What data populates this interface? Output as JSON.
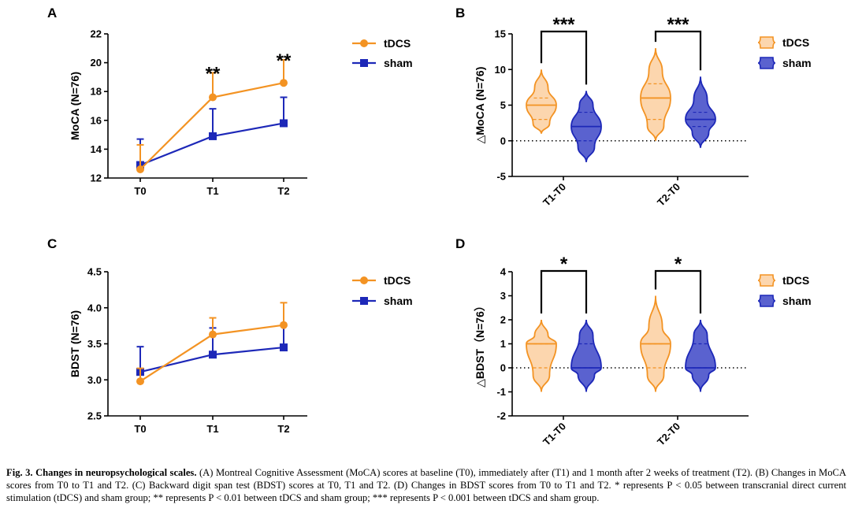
{
  "colors": {
    "tdcs": "#f39323",
    "sham": "#1d28b8",
    "tdcs_fill": "#fcd6ae",
    "sham_fill": "#5a62cf"
  },
  "chart_data": [
    {
      "panel": "A",
      "type": "line",
      "title": "",
      "xlabel": "",
      "ylabel": "MoCA (N=76)",
      "categories": [
        "T0",
        "T1",
        "T2"
      ],
      "ylim": [
        12,
        22
      ],
      "yticks": [
        "12",
        "14",
        "16",
        "18",
        "20",
        "22"
      ],
      "series": [
        {
          "name": "tDCS",
          "values": [
            12.6,
            17.6,
            18.6
          ],
          "err": [
            1.7,
            1.7,
            1.6
          ]
        },
        {
          "name": "sham",
          "values": [
            12.9,
            14.9,
            15.8
          ],
          "err": [
            1.8,
            1.9,
            1.8
          ]
        }
      ],
      "annotations": [
        "",
        "**",
        "**"
      ],
      "legend": [
        "tDCS",
        "sham"
      ]
    },
    {
      "panel": "B",
      "type": "violin",
      "title": "",
      "xlabel": "",
      "ylabel": "△MoCA (N=76)",
      "categories": [
        "T1-T0",
        "T2-T0"
      ],
      "ylim": [
        -5,
        15
      ],
      "yticks": [
        "-5",
        "0",
        "5",
        "10",
        "15"
      ],
      "groups": [
        {
          "category": "T1-T0",
          "series": "tDCS",
          "min": 1,
          "max": 10,
          "median": 5,
          "q1": 3,
          "q3": 6
        },
        {
          "category": "T1-T0",
          "series": "sham",
          "min": -3,
          "max": 7,
          "median": 2,
          "q1": 0,
          "q3": 4
        },
        {
          "category": "T2-T0",
          "series": "tDCS",
          "min": 0,
          "max": 13,
          "median": 6,
          "q1": 3,
          "q3": 8
        },
        {
          "category": "T2-T0",
          "series": "sham",
          "min": -1,
          "max": 9,
          "median": 3,
          "q1": 2,
          "q3": 4
        }
      ],
      "significance": [
        "***",
        "***"
      ],
      "legend": [
        "tDCS",
        "sham"
      ]
    },
    {
      "panel": "C",
      "type": "line",
      "title": "",
      "xlabel": "",
      "ylabel": "BDST (N=76)",
      "categories": [
        "T0",
        "T1",
        "T2"
      ],
      "ylim": [
        2.5,
        4.5
      ],
      "yticks": [
        "2.5",
        "3.0",
        "3.5",
        "4.0",
        "4.5"
      ],
      "series": [
        {
          "name": "tDCS",
          "values": [
            2.98,
            3.63,
            3.76
          ],
          "err": [
            0.18,
            0.23,
            0.31
          ]
        },
        {
          "name": "sham",
          "values": [
            3.11,
            3.35,
            3.45
          ],
          "err": [
            0.35,
            0.37,
            0.31
          ]
        }
      ],
      "annotations": [
        "",
        "",
        ""
      ],
      "legend": [
        "tDCS",
        "sham"
      ]
    },
    {
      "panel": "D",
      "type": "violin",
      "title": "",
      "xlabel": "",
      "ylabel": "△BDST（N=76）",
      "categories": [
        "T1-T0",
        "T2-T0"
      ],
      "ylim": [
        -2,
        4
      ],
      "yticks": [
        "-2",
        "-1",
        "0",
        "1",
        "2",
        "3",
        "4"
      ],
      "groups": [
        {
          "category": "T1-T0",
          "series": "tDCS",
          "min": -1,
          "max": 2,
          "median": 1,
          "q1": 0,
          "q3": 1
        },
        {
          "category": "T1-T0",
          "series": "sham",
          "min": -1,
          "max": 2,
          "median": 0,
          "q1": 0,
          "q3": 1
        },
        {
          "category": "T2-T0",
          "series": "tDCS",
          "min": -1,
          "max": 3,
          "median": 1,
          "q1": 0,
          "q3": 1
        },
        {
          "category": "T2-T0",
          "series": "sham",
          "min": -1,
          "max": 2,
          "median": 0,
          "q1": 0,
          "q3": 1
        }
      ],
      "significance": [
        "*",
        "*"
      ],
      "legend": [
        "tDCS",
        "sham"
      ]
    }
  ],
  "caption": {
    "bold": "Fig. 3. Changes in neuropsychological scales.",
    "text": " (A) Montreal Cognitive Assessment (MoCA) scores at baseline (T0), immediately after (T1) and 1 month after 2 weeks of treatment (T2). (B) Changes in MoCA scores from T0 to T1 and T2. (C) Backward digit span test (BDST) scores at T0, T1 and T2. (D) Changes in BDST scores from T0 to T1 and T2. * represents P < 0.05 between transcranial direct current stimulation (tDCS) and sham group; ** represents P < 0.01 between tDCS and sham group; *** represents P < 0.001 between tDCS and sham group."
  }
}
